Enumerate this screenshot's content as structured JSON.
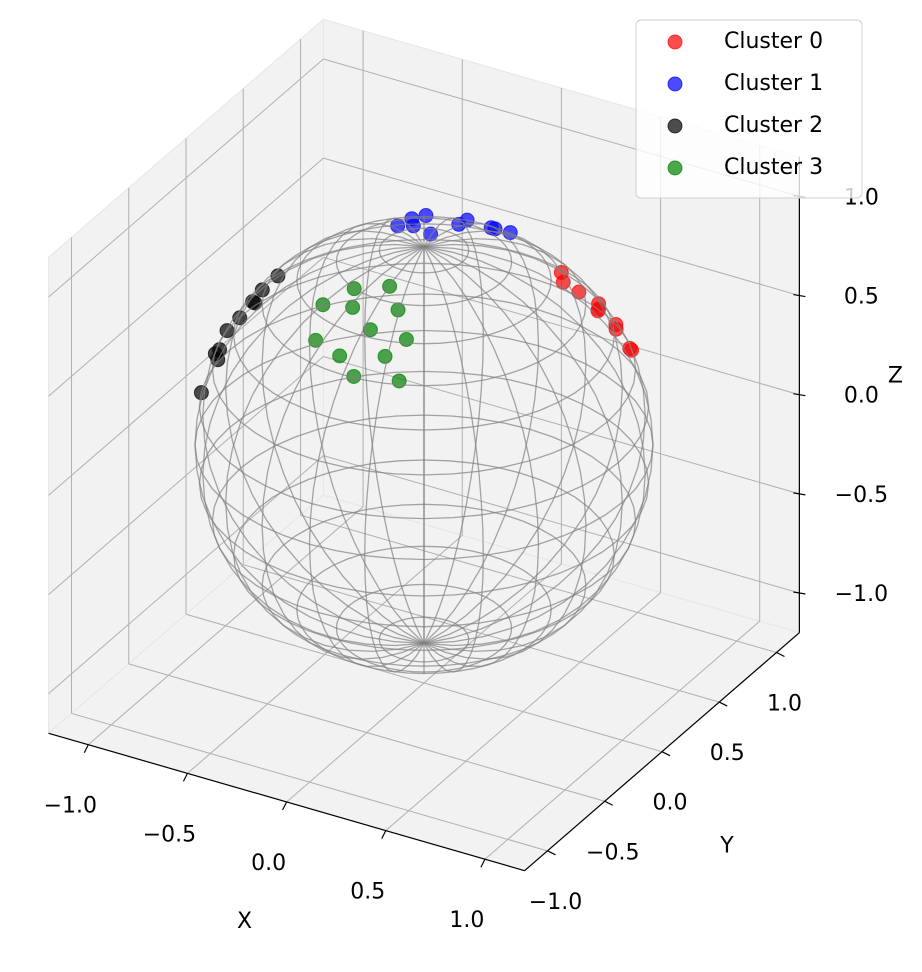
{
  "chart_data": {
    "type": "scatter3d",
    "xlabel": "X",
    "ylabel": "Y",
    "zlabel": "Z",
    "xlim": [
      -1.2,
      1.2
    ],
    "ylim": [
      -1.2,
      1.2
    ],
    "zlim": [
      -1.2,
      1.2
    ],
    "xticks": [
      {
        "value": -1,
        "label": "−1.0"
      },
      {
        "value": -0.5,
        "label": "−0.5"
      },
      {
        "value": 0,
        "label": "0.0"
      },
      0.5,
      {
        "value": 1,
        "label": "1.0"
      }
    ],
    "yticks": [
      {
        "value": -1,
        "label": "−1.0"
      },
      {
        "value": -0.5,
        "label": "−0.5"
      },
      {
        "value": 0,
        "label": "0.0"
      },
      0.5,
      {
        "value": 1,
        "label": "1.0"
      }
    ],
    "zticks": [
      {
        "value": -1,
        "label": "−1.0"
      },
      {
        "value": -0.5,
        "label": "−0.5"
      },
      {
        "value": 0,
        "label": "0.0"
      },
      0.5,
      {
        "value": 1,
        "label": "1.0"
      }
    ],
    "grid": true,
    "legend": "upper right",
    "alpha": 0.7,
    "wireframe": {
      "radius": 1,
      "color": "#808080"
    },
    "series": [
      {
        "name": "Cluster 0",
        "color": "#ff0000",
        "x": [
          0.6,
          0.55,
          0.65,
          0.7,
          0.5,
          0.62,
          0.72,
          0.45,
          0.68,
          0.58
        ],
        "y": [
          0.48,
          0.4,
          0.55,
          0.6,
          0.35,
          0.45,
          0.55,
          0.42,
          0.5,
          0.52
        ],
        "z": [
          0.61,
          0.73,
          0.52,
          0.38,
          0.79,
          0.64,
          0.42,
          0.79,
          0.53,
          0.62
        ]
      },
      {
        "name": "Cluster 1",
        "color": "#0000ff",
        "x": [
          -0.29,
          -0.1,
          -0.4,
          0.05,
          -0.2,
          -0.35,
          0.1,
          -0.25,
          -0.45,
          0.0
        ],
        "y": [
          0.56,
          0.55,
          0.6,
          0.5,
          0.65,
          0.5,
          0.58,
          0.45,
          0.55,
          0.62
        ],
        "z": [
          0.7,
          0.83,
          0.69,
          0.86,
          0.73,
          0.79,
          0.81,
          0.86,
          0.7,
          0.78
        ]
      },
      {
        "name": "Cluster 2",
        "color": "#000000",
        "x": [
          -0.75,
          -0.8,
          -0.7,
          -0.85,
          -0.65,
          -0.78,
          -0.72,
          -0.88,
          -0.68,
          -0.82
        ],
        "y": [
          -0.31,
          -0.4,
          -0.2,
          -0.35,
          -0.15,
          -0.45,
          -0.25,
          -0.42,
          -0.3,
          -0.3
        ],
        "z": [
          0.58,
          0.45,
          0.68,
          0.39,
          0.74,
          0.43,
          0.64,
          0.22,
          0.67,
          0.49
        ]
      },
      {
        "name": "Cluster 3",
        "color": "#008000",
        "x": [
          0.03,
          -0.1,
          0.15,
          -0.2,
          0.1,
          -0.05,
          0.2,
          -0.25,
          0.05,
          -0.15,
          0.25,
          0.0
        ],
        "y": [
          -0.52,
          -0.45,
          -0.6,
          -0.6,
          -0.4,
          -0.65,
          -0.5,
          -0.45,
          -0.7,
          -0.35,
          -0.65,
          -0.3
        ],
        "z": [
          0.85,
          0.89,
          0.79,
          0.77,
          0.91,
          0.76,
          0.84,
          0.86,
          0.71,
          0.92,
          0.72,
          0.95
        ]
      }
    ]
  }
}
